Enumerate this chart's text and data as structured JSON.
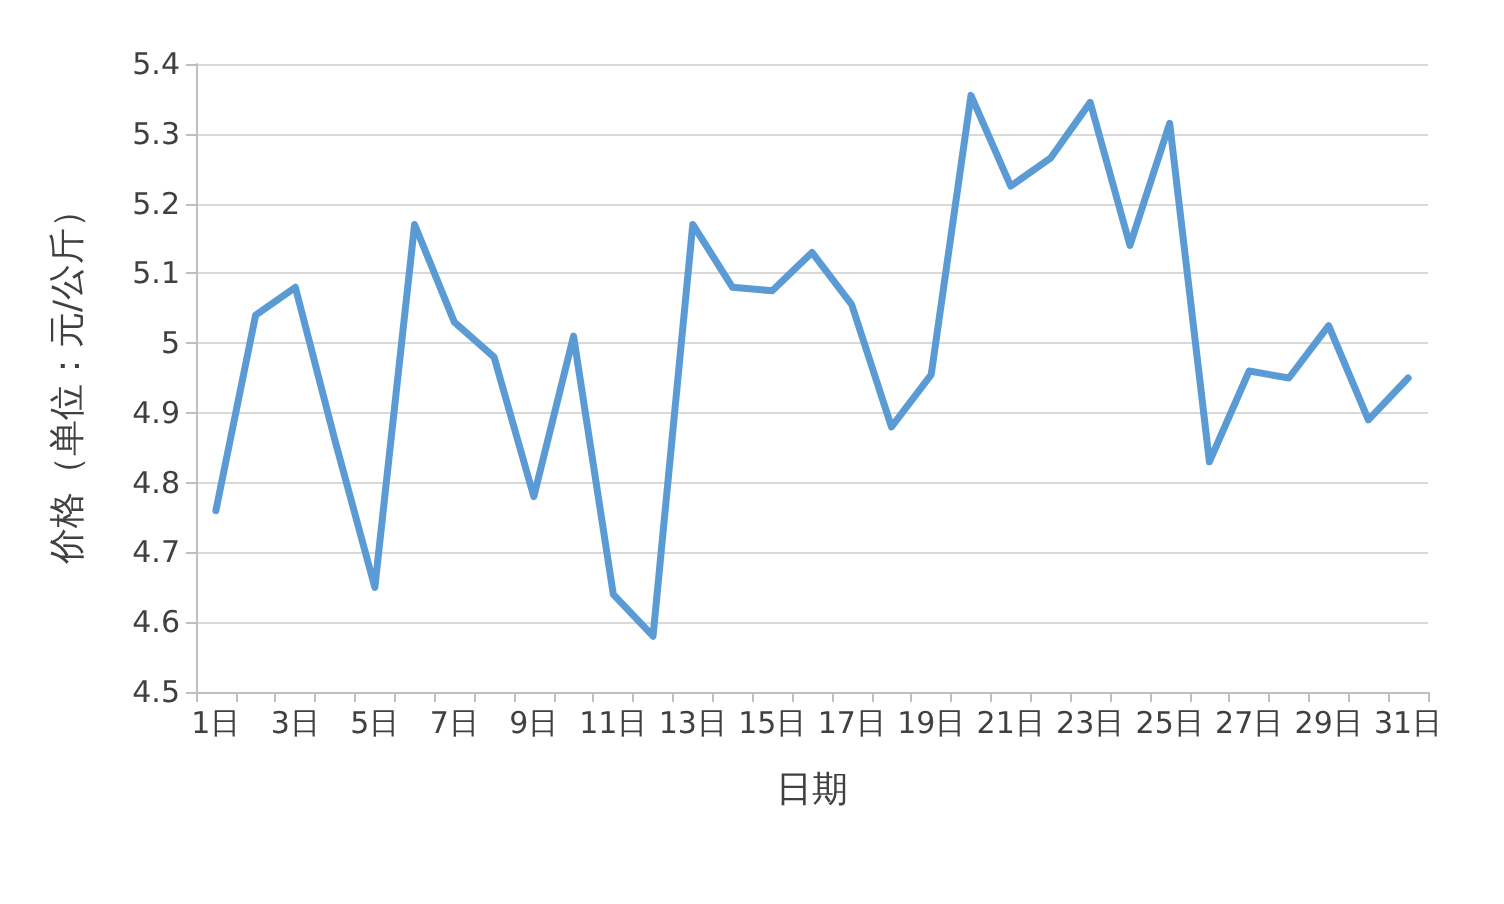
{
  "chart_data": {
    "type": "line",
    "xlabel": "日期",
    "ylabel": "价格（单位：元/公斤）",
    "categories": [
      "1日",
      null,
      "3日",
      null,
      "5日",
      null,
      "7日",
      null,
      "9日",
      null,
      "11日",
      null,
      "13日",
      null,
      "15日",
      null,
      "17日",
      null,
      "19日",
      null,
      "21日",
      null,
      "23日",
      null,
      "25日",
      null,
      "27日",
      null,
      "29日",
      null,
      "31日"
    ],
    "series": [
      {
        "color": "#5b9bd5",
        "values": [
          4.76,
          5.04,
          5.08,
          4.86,
          4.65,
          5.17,
          5.03,
          4.98,
          4.78,
          5.01,
          4.64,
          4.58,
          5.17,
          5.08,
          5.075,
          5.13,
          5.055,
          4.88,
          4.955,
          5.355,
          5.225,
          5.265,
          5.345,
          5.14,
          5.315,
          4.83,
          4.96,
          4.95,
          5.025,
          4.89,
          4.95
        ]
      }
    ],
    "ylim": [
      4.5,
      5.4
    ],
    "yticks": [
      4.5,
      4.6,
      4.7,
      4.8,
      4.9,
      5,
      5.1,
      5.2,
      5.3,
      5.4
    ],
    "grid": "y",
    "marker": "none",
    "line_style": "solid"
  }
}
